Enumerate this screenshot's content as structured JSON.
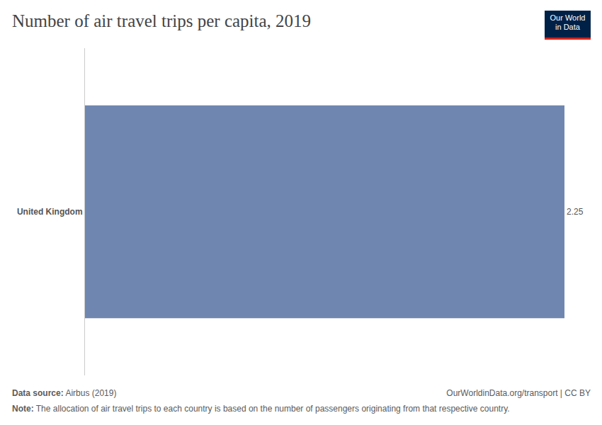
{
  "chart_data": {
    "type": "bar",
    "title": "Number of air travel trips per capita, 2019",
    "orientation": "horizontal",
    "categories": [
      "United Kingdom"
    ],
    "values": [
      2.25
    ],
    "color": "#6f87b0",
    "xlim": [
      0,
      2.25
    ],
    "data_labels": true,
    "tick_labels": "y",
    "grid": false,
    "logo": [
      "Our World",
      "in Data"
    ],
    "source_label": "Data source:",
    "source": "Airbus (2019)",
    "url": "OurWorldinData.org/transport | CC BY",
    "note_label": "Note:",
    "note": "The allocation of air travel trips to each country is based on the number of passengers originating from that respective country."
  }
}
